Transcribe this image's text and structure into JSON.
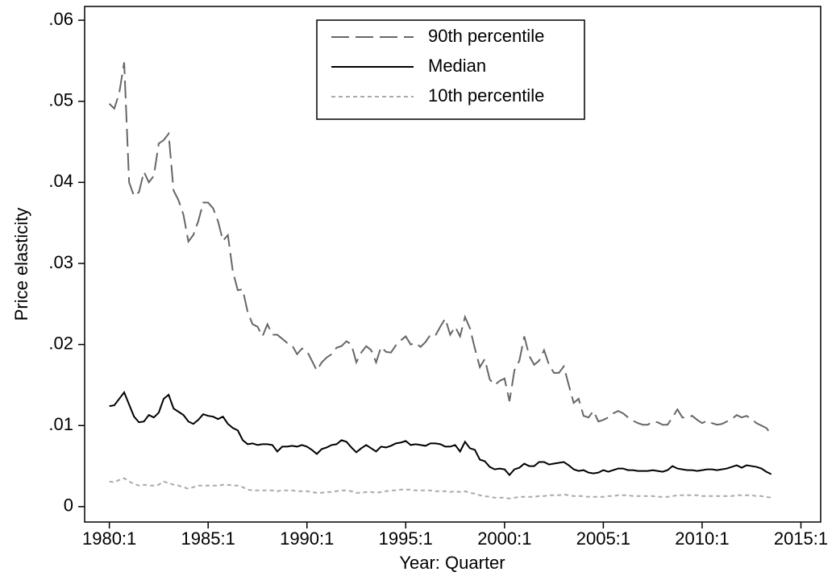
{
  "chart_data": {
    "type": "line",
    "x_label": "Year: Quarter",
    "y_label": "Price elasticity",
    "x": [
      1980,
      1980.25,
      1980.5,
      1980.75,
      1981,
      1981.25,
      1981.5,
      1981.75,
      1982,
      1982.25,
      1982.5,
      1982.75,
      1983,
      1983.25,
      1983.5,
      1983.75,
      1984,
      1984.25,
      1984.5,
      1984.75,
      1985,
      1985.25,
      1985.5,
      1985.75,
      1986,
      1986.25,
      1986.5,
      1986.75,
      1987,
      1987.25,
      1987.5,
      1987.75,
      1988,
      1988.25,
      1988.5,
      1988.75,
      1989,
      1989.25,
      1989.5,
      1989.75,
      1990,
      1990.25,
      1990.5,
      1990.75,
      1991,
      1991.25,
      1991.5,
      1991.75,
      1992,
      1992.25,
      1992.5,
      1992.75,
      1993,
      1993.25,
      1993.5,
      1993.75,
      1994,
      1994.25,
      1994.5,
      1994.75,
      1995,
      1995.25,
      1995.5,
      1995.75,
      1996,
      1996.25,
      1996.5,
      1996.75,
      1997,
      1997.25,
      1997.5,
      1997.75,
      1998,
      1998.25,
      1998.5,
      1998.75,
      1999,
      1999.25,
      1999.5,
      1999.75,
      2000,
      2000.25,
      2000.5,
      2000.75,
      2001,
      2001.25,
      2001.5,
      2001.75,
      2002,
      2002.25,
      2002.5,
      2002.75,
      2003,
      2003.25,
      2003.5,
      2003.75,
      2004,
      2004.25,
      2004.5,
      2004.75,
      2005,
      2005.25,
      2005.5,
      2005.75,
      2006,
      2006.25,
      2006.5,
      2006.75,
      2007,
      2007.25,
      2007.5,
      2007.75,
      2008,
      2008.25,
      2008.5,
      2008.75,
      2009,
      2009.25,
      2009.5,
      2009.75,
      2010,
      2010.25,
      2010.5,
      2010.75,
      2011,
      2011.25,
      2011.5,
      2011.75,
      2012,
      2012.25,
      2012.5,
      2012.75,
      2013,
      2013.25,
      2013.5
    ],
    "series": [
      {
        "name": "90th percentile",
        "color": "#666666",
        "style": "long-dash",
        "values": [
          0.0497,
          0.0491,
          0.051,
          0.0548,
          0.04,
          0.0383,
          0.0388,
          0.0413,
          0.04,
          0.0408,
          0.0448,
          0.0452,
          0.046,
          0.039,
          0.0378,
          0.036,
          0.0327,
          0.0335,
          0.0352,
          0.0375,
          0.0375,
          0.0368,
          0.0352,
          0.0328,
          0.0335,
          0.029,
          0.0267,
          0.0268,
          0.024,
          0.0225,
          0.0222,
          0.021,
          0.0225,
          0.0212,
          0.0212,
          0.0207,
          0.0202,
          0.0199,
          0.0188,
          0.0195,
          0.0192,
          0.018,
          0.0168,
          0.0178,
          0.0184,
          0.0188,
          0.0196,
          0.0198,
          0.0204,
          0.02,
          0.0178,
          0.019,
          0.0198,
          0.0193,
          0.0178,
          0.0197,
          0.0191,
          0.019,
          0.0199,
          0.0205,
          0.021,
          0.02,
          0.0202,
          0.0197,
          0.0203,
          0.0212,
          0.0211,
          0.0222,
          0.0232,
          0.0212,
          0.0222,
          0.021,
          0.0234,
          0.022,
          0.0195,
          0.0172,
          0.0182,
          0.0157,
          0.015,
          0.0155,
          0.0158,
          0.013,
          0.0168,
          0.018,
          0.021,
          0.0186,
          0.0175,
          0.018,
          0.0193,
          0.0175,
          0.0165,
          0.0165,
          0.0173,
          0.015,
          0.0128,
          0.0133,
          0.0112,
          0.011,
          0.0118,
          0.0105,
          0.0107,
          0.011,
          0.0115,
          0.0118,
          0.0115,
          0.011,
          0.0106,
          0.0103,
          0.0101,
          0.0101,
          0.0105,
          0.0104,
          0.0101,
          0.0101,
          0.011,
          0.012,
          0.011,
          0.011,
          0.0112,
          0.0107,
          0.0103,
          0.0106,
          0.0103,
          0.0101,
          0.0102,
          0.0105,
          0.0108,
          0.0113,
          0.011,
          0.0112,
          0.0108,
          0.0103,
          0.01,
          0.0097,
          0.0089
        ]
      },
      {
        "name": "Median",
        "color": "#000000",
        "style": "solid",
        "values": [
          0.0124,
          0.0125,
          0.0133,
          0.0141,
          0.0126,
          0.0111,
          0.0104,
          0.0105,
          0.0113,
          0.011,
          0.0116,
          0.0133,
          0.0138,
          0.0121,
          0.0117,
          0.0113,
          0.0105,
          0.0102,
          0.0107,
          0.0114,
          0.0112,
          0.0111,
          0.0108,
          0.0111,
          0.0102,
          0.0097,
          0.0094,
          0.0082,
          0.0077,
          0.0078,
          0.0076,
          0.0077,
          0.0077,
          0.0076,
          0.0068,
          0.0074,
          0.0074,
          0.0075,
          0.0074,
          0.0076,
          0.0074,
          0.007,
          0.0065,
          0.0071,
          0.0073,
          0.0076,
          0.0077,
          0.0082,
          0.008,
          0.0073,
          0.0067,
          0.0072,
          0.0076,
          0.0072,
          0.0068,
          0.0074,
          0.0073,
          0.0075,
          0.0078,
          0.0079,
          0.0081,
          0.0076,
          0.0077,
          0.0076,
          0.0075,
          0.0078,
          0.0078,
          0.0077,
          0.0074,
          0.0074,
          0.0076,
          0.0068,
          0.008,
          0.0072,
          0.007,
          0.0058,
          0.0056,
          0.0049,
          0.0046,
          0.0047,
          0.0046,
          0.0039,
          0.0046,
          0.0048,
          0.0053,
          0.005,
          0.005,
          0.0055,
          0.0055,
          0.0052,
          0.0053,
          0.0054,
          0.0055,
          0.0051,
          0.0046,
          0.0044,
          0.0045,
          0.0042,
          0.0041,
          0.0042,
          0.0045,
          0.0043,
          0.0045,
          0.0047,
          0.0047,
          0.0045,
          0.0045,
          0.0044,
          0.0044,
          0.0044,
          0.0045,
          0.0044,
          0.0043,
          0.0045,
          0.005,
          0.0047,
          0.0046,
          0.0045,
          0.0045,
          0.0044,
          0.0045,
          0.0046,
          0.0046,
          0.0045,
          0.0046,
          0.0047,
          0.0049,
          0.0051,
          0.0048,
          0.0051,
          0.005,
          0.0049,
          0.0047,
          0.0043,
          0.004
        ]
      },
      {
        "name": "10th percentile",
        "color": "#aaaaaa",
        "style": "short-dash",
        "values": [
          0.0031,
          0.003,
          0.0033,
          0.0035,
          0.0031,
          0.0028,
          0.0026,
          0.0027,
          0.0026,
          0.0026,
          0.0027,
          0.0031,
          0.0029,
          0.0027,
          0.0026,
          0.0024,
          0.0022,
          0.0024,
          0.0026,
          0.0026,
          0.0026,
          0.0026,
          0.0026,
          0.0027,
          0.0027,
          0.0026,
          0.0026,
          0.0024,
          0.0021,
          0.002,
          0.002,
          0.002,
          0.002,
          0.002,
          0.0019,
          0.002,
          0.002,
          0.002,
          0.0019,
          0.0019,
          0.0019,
          0.0018,
          0.0017,
          0.0017,
          0.0018,
          0.0018,
          0.0019,
          0.002,
          0.002,
          0.0019,
          0.0017,
          0.0017,
          0.0018,
          0.0018,
          0.0017,
          0.0018,
          0.0019,
          0.002,
          0.002,
          0.0021,
          0.0021,
          0.0021,
          0.002,
          0.002,
          0.002,
          0.002,
          0.0019,
          0.0019,
          0.0019,
          0.0018,
          0.0019,
          0.0018,
          0.0019,
          0.0017,
          0.0016,
          0.0014,
          0.0013,
          0.0012,
          0.0011,
          0.0011,
          0.0011,
          0.001,
          0.0011,
          0.0012,
          0.0012,
          0.0012,
          0.0012,
          0.0013,
          0.0013,
          0.0014,
          0.0014,
          0.0014,
          0.0015,
          0.0014,
          0.0013,
          0.0013,
          0.0013,
          0.0012,
          0.0012,
          0.0012,
          0.0012,
          0.0013,
          0.0013,
          0.0014,
          0.0014,
          0.0014,
          0.0013,
          0.0013,
          0.0013,
          0.0013,
          0.0013,
          0.0012,
          0.0012,
          0.0012,
          0.0013,
          0.0014,
          0.0014,
          0.0014,
          0.0014,
          0.0014,
          0.0013,
          0.0013,
          0.0013,
          0.0013,
          0.0013,
          0.0013,
          0.0013,
          0.0014,
          0.0014,
          0.0014,
          0.0014,
          0.0013,
          0.0013,
          0.0012,
          0.0011
        ]
      }
    ],
    "xlim": [
      1978.75,
      2016
    ],
    "ylim": [
      -0.0019,
      0.0617
    ],
    "xticks": [
      {
        "value": 1980,
        "label": "1980:1"
      },
      {
        "value": 1985,
        "label": "1985:1"
      },
      {
        "value": 1990,
        "label": "1990:1"
      },
      {
        "value": 1995,
        "label": "1995:1"
      },
      {
        "value": 2000,
        "label": "2000:1"
      },
      {
        "value": 2005,
        "label": "2005:1"
      },
      {
        "value": 2010,
        "label": "2010:1"
      },
      {
        "value": 2015,
        "label": "2015:1"
      }
    ],
    "yticks": [
      0,
      {
        "value": 0.01,
        "label": ".01"
      },
      {
        "value": 0.02,
        "label": ".02"
      },
      {
        "value": 0.03,
        "label": ".03"
      },
      {
        "value": 0.04,
        "label": ".04"
      },
      {
        "value": 0.05,
        "label": ".05"
      },
      {
        "value": 0.06,
        "label": ".06"
      }
    ],
    "legend": "top"
  }
}
